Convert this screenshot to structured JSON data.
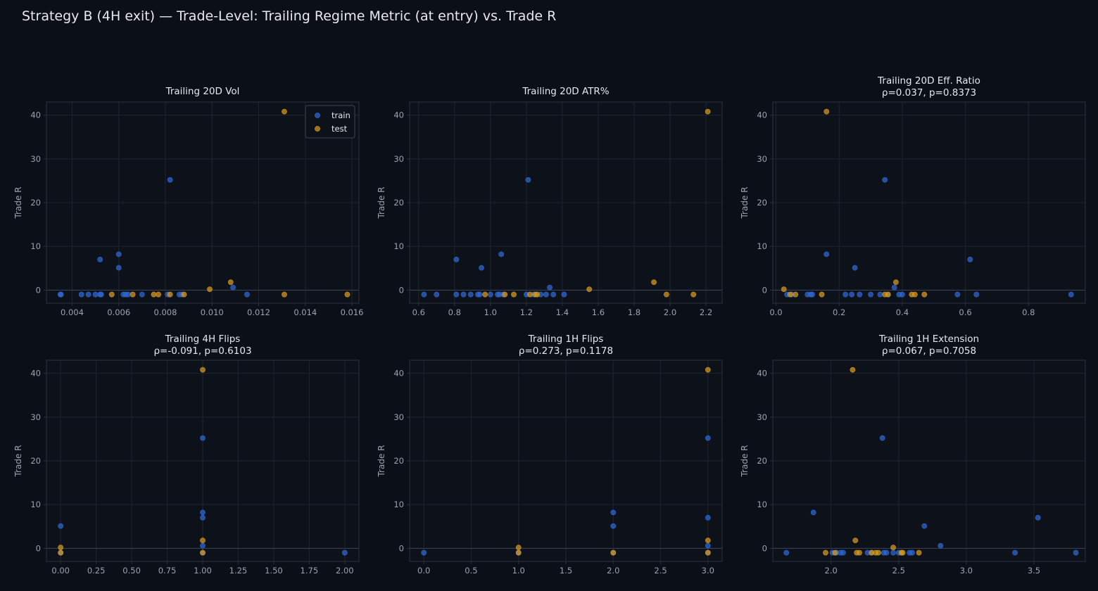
{
  "figure": {
    "suptitle": "Strategy B (4H exit) — Trade-Level: Trailing Regime Metric (at entry) vs. Trade R"
  },
  "colors": {
    "background": "#0b0f17",
    "panel": "#0d111a",
    "grid": "#1e2532",
    "spine": "#2a3242",
    "zero_line": "#3a4252",
    "text": "#e6e9ef",
    "tick_text": "#9aa3b2",
    "train": "#2f6ad6",
    "test": "#d99a1e"
  },
  "legend": {
    "entries": [
      "train",
      "test"
    ],
    "location": "upper-right",
    "panel": 0
  },
  "chart_data": [
    {
      "type": "scatter",
      "title": "Trailing 20D Vol",
      "subtitle": "",
      "xlabel": "",
      "ylabel": "Trade R",
      "xlim": [
        0.0029,
        0.0163
      ],
      "ylim": [
        -3,
        43
      ],
      "xticks": [
        0.004,
        0.006,
        0.008,
        0.01,
        0.012,
        0.014,
        0.016
      ],
      "xtick_labels": [
        "0.004",
        "0.006",
        "0.008",
        "0.010",
        "0.012",
        "0.014",
        "0.016"
      ],
      "yticks": [
        0,
        10,
        20,
        30,
        40
      ],
      "ytick_labels": [
        "0",
        "10",
        "20",
        "30",
        "40"
      ],
      "grid": true,
      "series": [
        {
          "name": "train",
          "points": [
            [
              0.0035,
              -1
            ],
            [
              0.00352,
              -1
            ],
            [
              0.0044,
              -1
            ],
            [
              0.0047,
              -1
            ],
            [
              0.005,
              -1
            ],
            [
              0.0052,
              -1
            ],
            [
              0.00525,
              -1
            ],
            [
              0.0052,
              7
            ],
            [
              0.006,
              8.2
            ],
            [
              0.006,
              5.1
            ],
            [
              0.0062,
              -1
            ],
            [
              0.0063,
              -1
            ],
            [
              0.0064,
              -1
            ],
            [
              0.007,
              -1
            ],
            [
              0.0081,
              -1
            ],
            [
              0.0082,
              25.2
            ],
            [
              0.0086,
              -1
            ],
            [
              0.0087,
              -1
            ],
            [
              0.0109,
              0.6
            ],
            [
              0.0115,
              -1
            ]
          ]
        },
        {
          "name": "test",
          "points": [
            [
              0.0057,
              -1
            ],
            [
              0.0066,
              -1
            ],
            [
              0.0075,
              -1
            ],
            [
              0.0077,
              -1
            ],
            [
              0.0082,
              -1
            ],
            [
              0.0088,
              -1
            ],
            [
              0.0099,
              0.2
            ],
            [
              0.0108,
              1.8
            ],
            [
              0.0131,
              40.8
            ],
            [
              0.0131,
              -1
            ],
            [
              0.0158,
              -1
            ]
          ]
        }
      ]
    },
    {
      "type": "scatter",
      "title": "Trailing 20D ATR%",
      "subtitle": "",
      "xlabel": "",
      "ylabel": "Trade R",
      "xlim": [
        0.55,
        2.29
      ],
      "ylim": [
        -3,
        43
      ],
      "xticks": [
        0.6,
        0.8,
        1.0,
        1.2,
        1.4,
        1.6,
        1.8,
        2.0,
        2.2
      ],
      "xtick_labels": [
        "0.6",
        "0.8",
        "1.0",
        "1.2",
        "1.4",
        "1.6",
        "1.8",
        "2.0",
        "2.2"
      ],
      "yticks": [
        0,
        10,
        20,
        30,
        40
      ],
      "ytick_labels": [
        "0",
        "10",
        "20",
        "30",
        "40"
      ],
      "grid": true,
      "series": [
        {
          "name": "train",
          "points": [
            [
              0.63,
              -1
            ],
            [
              0.7,
              -1
            ],
            [
              0.81,
              -1
            ],
            [
              0.81,
              7
            ],
            [
              0.85,
              -1
            ],
            [
              0.89,
              -1
            ],
            [
              0.93,
              -1
            ],
            [
              0.94,
              -1
            ],
            [
              0.95,
              5.1
            ],
            [
              1.0,
              -1
            ],
            [
              1.04,
              -1
            ],
            [
              1.05,
              -1
            ],
            [
              1.06,
              8.2
            ],
            [
              1.07,
              -1
            ],
            [
              1.2,
              -1
            ],
            [
              1.21,
              25.2
            ],
            [
              1.24,
              -1
            ],
            [
              1.28,
              -1
            ],
            [
              1.31,
              -1
            ],
            [
              1.33,
              0.6
            ],
            [
              1.35,
              -1
            ],
            [
              1.41,
              -1
            ]
          ]
        },
        {
          "name": "test",
          "points": [
            [
              0.97,
              -1
            ],
            [
              1.08,
              -1
            ],
            [
              1.13,
              -1
            ],
            [
              1.22,
              -1
            ],
            [
              1.25,
              -1
            ],
            [
              1.26,
              -1
            ],
            [
              1.55,
              0.2
            ],
            [
              1.91,
              1.8
            ],
            [
              1.98,
              -1
            ],
            [
              2.13,
              -1
            ],
            [
              2.21,
              40.8
            ]
          ]
        }
      ]
    },
    {
      "type": "scatter",
      "title": "Trailing 20D Eff. Ratio",
      "subtitle": "ρ=0.037, p=0.8373",
      "xlabel": "",
      "ylabel": "Trade R",
      "xlim": [
        -0.01,
        0.98
      ],
      "ylim": [
        -3,
        43
      ],
      "xticks": [
        0.0,
        0.2,
        0.4,
        0.6,
        0.8
      ],
      "xtick_labels": [
        "0.0",
        "0.2",
        "0.4",
        "0.6",
        "0.8"
      ],
      "yticks": [
        0,
        10,
        20,
        30,
        40
      ],
      "ytick_labels": [
        "0",
        "10",
        "20",
        "30",
        "40"
      ],
      "grid": true,
      "series": [
        {
          "name": "train",
          "points": [
            [
              0.035,
              -1
            ],
            [
              0.05,
              -1
            ],
            [
              0.1,
              -1
            ],
            [
              0.11,
              -1
            ],
            [
              0.115,
              -1
            ],
            [
              0.16,
              8.2
            ],
            [
              0.22,
              -1
            ],
            [
              0.24,
              -1
            ],
            [
              0.25,
              5.1
            ],
            [
              0.265,
              -1
            ],
            [
              0.3,
              -1
            ],
            [
              0.33,
              -1
            ],
            [
              0.345,
              25.2
            ],
            [
              0.355,
              -1
            ],
            [
              0.375,
              0.6
            ],
            [
              0.39,
              -1
            ],
            [
              0.4,
              -1
            ],
            [
              0.575,
              -1
            ],
            [
              0.615,
              7
            ],
            [
              0.635,
              -1
            ],
            [
              0.935,
              -1
            ]
          ]
        },
        {
          "name": "test",
          "points": [
            [
              0.025,
              0.2
            ],
            [
              0.045,
              -1
            ],
            [
              0.062,
              -1
            ],
            [
              0.145,
              -1
            ],
            [
              0.16,
              40.8
            ],
            [
              0.345,
              -1
            ],
            [
              0.355,
              -1
            ],
            [
              0.38,
              1.8
            ],
            [
              0.43,
              -1
            ],
            [
              0.44,
              -1
            ],
            [
              0.47,
              -1
            ]
          ]
        }
      ]
    },
    {
      "type": "scatter",
      "title": "Trailing 4H Flips",
      "subtitle": "ρ=-0.091, p=0.6103",
      "xlabel": "",
      "ylabel": "Trade R",
      "xlim": [
        -0.1,
        2.1
      ],
      "ylim": [
        -3,
        43
      ],
      "xticks": [
        0.0,
        0.25,
        0.5,
        0.75,
        1.0,
        1.25,
        1.5,
        1.75,
        2.0
      ],
      "xtick_labels": [
        "0.00",
        "0.25",
        "0.50",
        "0.75",
        "1.00",
        "1.25",
        "1.50",
        "1.75",
        "2.00"
      ],
      "yticks": [
        0,
        10,
        20,
        30,
        40
      ],
      "ytick_labels": [
        "0",
        "10",
        "20",
        "30",
        "40"
      ],
      "grid": true,
      "series": [
        {
          "name": "train",
          "points": [
            [
              0,
              5.1
            ],
            [
              0,
              -1
            ],
            [
              1,
              25.2
            ],
            [
              1,
              8.2
            ],
            [
              1,
              7
            ],
            [
              1,
              0.6
            ],
            [
              1,
              -1
            ],
            [
              2,
              -1
            ]
          ]
        },
        {
          "name": "test",
          "points": [
            [
              0,
              0.2
            ],
            [
              0,
              -1
            ],
            [
              1,
              40.8
            ],
            [
              1,
              1.8
            ],
            [
              1,
              -1
            ]
          ]
        }
      ]
    },
    {
      "type": "scatter",
      "title": "Trailing 1H Flips",
      "subtitle": "ρ=0.273, p=0.1178",
      "xlabel": "",
      "ylabel": "Trade R",
      "xlim": [
        -0.15,
        3.15
      ],
      "ylim": [
        -3,
        43
      ],
      "xticks": [
        0.0,
        0.5,
        1.0,
        1.5,
        2.0,
        2.5,
        3.0
      ],
      "xtick_labels": [
        "0.0",
        "0.5",
        "1.0",
        "1.5",
        "2.0",
        "2.5",
        "3.0"
      ],
      "yticks": [
        0,
        10,
        20,
        30,
        40
      ],
      "ytick_labels": [
        "0",
        "10",
        "20",
        "30",
        "40"
      ],
      "grid": true,
      "series": [
        {
          "name": "train",
          "points": [
            [
              0,
              -1
            ],
            [
              1,
              -1
            ],
            [
              2,
              8.2
            ],
            [
              2,
              5.1
            ],
            [
              2,
              -1
            ],
            [
              3,
              25.2
            ],
            [
              3,
              7
            ],
            [
              3,
              0.6
            ],
            [
              3,
              -1
            ]
          ]
        },
        {
          "name": "test",
          "points": [
            [
              1,
              0.2
            ],
            [
              1,
              -1
            ],
            [
              2,
              -1
            ],
            [
              3,
              40.8
            ],
            [
              3,
              1.8
            ],
            [
              3,
              -1
            ]
          ]
        }
      ]
    },
    {
      "type": "scatter",
      "title": "Trailing 1H Extension",
      "subtitle": "ρ=0.067, p=0.7058",
      "xlabel": "",
      "ylabel": "Trade R",
      "xlim": [
        1.57,
        3.88
      ],
      "ylim": [
        -3,
        43
      ],
      "xticks": [
        2.0,
        2.5,
        3.0,
        3.5
      ],
      "xtick_labels": [
        "2.0",
        "2.5",
        "3.0",
        "3.5"
      ],
      "yticks": [
        0,
        10,
        20,
        30,
        40
      ],
      "ytick_labels": [
        "0",
        "10",
        "20",
        "30",
        "40"
      ],
      "grid": true,
      "series": [
        {
          "name": "train",
          "points": [
            [
              1.67,
              -1
            ],
            [
              1.87,
              8.2
            ],
            [
              2.01,
              -1
            ],
            [
              2.04,
              -1
            ],
            [
              2.07,
              -1
            ],
            [
              2.09,
              -1
            ],
            [
              2.27,
              -1
            ],
            [
              2.3,
              -1
            ],
            [
              2.38,
              25.2
            ],
            [
              2.39,
              -1
            ],
            [
              2.41,
              -1
            ],
            [
              2.46,
              -1
            ],
            [
              2.5,
              -1
            ],
            [
              2.58,
              -1
            ],
            [
              2.6,
              -1
            ],
            [
              2.69,
              5.1
            ],
            [
              2.81,
              0.6
            ],
            [
              3.36,
              -1
            ],
            [
              3.53,
              7
            ],
            [
              3.81,
              -1
            ]
          ]
        },
        {
          "name": "test",
          "points": [
            [
              1.96,
              -1
            ],
            [
              2.03,
              -1
            ],
            [
              2.16,
              40.8
            ],
            [
              2.18,
              1.8
            ],
            [
              2.19,
              -1
            ],
            [
              2.21,
              -1
            ],
            [
              2.3,
              -1
            ],
            [
              2.33,
              -1
            ],
            [
              2.35,
              -1
            ],
            [
              2.46,
              0.2
            ],
            [
              2.52,
              -1
            ],
            [
              2.53,
              -1
            ],
            [
              2.65,
              -1
            ]
          ]
        }
      ]
    }
  ]
}
